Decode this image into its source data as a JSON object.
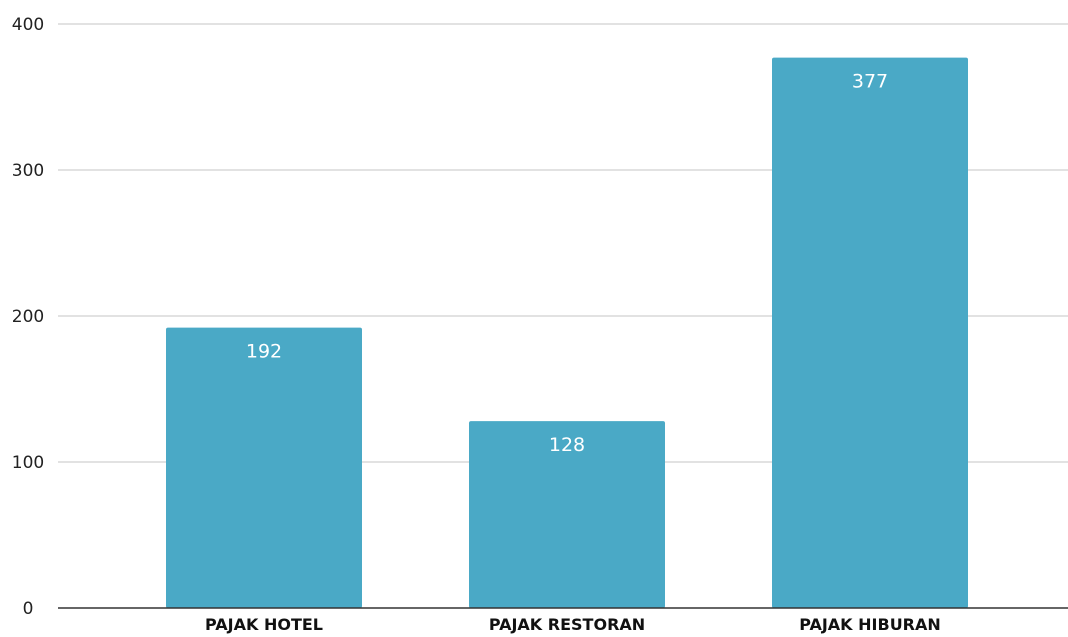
{
  "chart_data": {
    "type": "bar",
    "title": "",
    "xlabel": "",
    "ylabel": "",
    "categories": [
      "PAJAK HOTEL",
      "PAJAK RESTORAN",
      "PAJAK HIBURAN"
    ],
    "values": [
      192,
      128,
      377
    ],
    "data_labels": [
      "192",
      "128",
      "377"
    ],
    "ylim": [
      0,
      400
    ],
    "yticks": [
      0,
      100,
      200,
      300,
      400
    ],
    "ytick_labels": [
      "0",
      "100",
      "200",
      "300",
      "400"
    ],
    "grid": true,
    "legend": "none",
    "colors": {
      "bar": "#4aa9c6",
      "grid": "#d9d9d9",
      "axis": "#333333",
      "data_label": "#ffffff"
    }
  }
}
